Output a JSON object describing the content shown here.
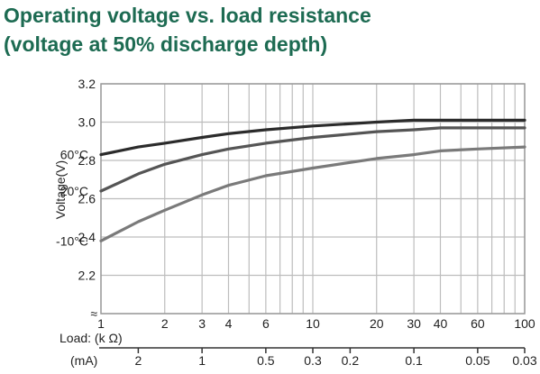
{
  "title_line1": "Operating voltage vs. load resistance",
  "title_line2": "(voltage at 50% discharge depth)",
  "title_color": "#1d6b52",
  "chart_data": {
    "type": "line",
    "ylabel": "Voltage(V)",
    "xlabel": "Load: (k Ω)",
    "x2label": "(mA)",
    "x_scale": "log",
    "xlim": [
      1,
      100
    ],
    "ylim": [
      2.0,
      3.2
    ],
    "y_ticks": [
      "3.2",
      "3.0",
      "2.8",
      "2.6",
      "2.4",
      "2.2"
    ],
    "y_break_marker": "≈",
    "x_ticks": [
      "1",
      "2",
      "3",
      "4",
      "6",
      "10",
      "20",
      "30",
      "40",
      "60",
      "100"
    ],
    "x2_ticks": [
      "2",
      "1",
      "0.5",
      "0.3",
      "0.2",
      "0.1",
      "0.05",
      "0.03"
    ],
    "series": [
      {
        "name": "60°C",
        "color": "#2b2b2b",
        "x": [
          1,
          1.5,
          2,
          3,
          4,
          6,
          10,
          20,
          30,
          40,
          60,
          100
        ],
        "y": [
          2.83,
          2.87,
          2.89,
          2.92,
          2.94,
          2.96,
          2.98,
          3.0,
          3.01,
          3.01,
          3.01,
          3.01
        ]
      },
      {
        "name": "20°C",
        "color": "#555555",
        "x": [
          1,
          1.5,
          2,
          3,
          4,
          6,
          10,
          20,
          30,
          40,
          60,
          100
        ],
        "y": [
          2.64,
          2.73,
          2.78,
          2.83,
          2.86,
          2.89,
          2.92,
          2.95,
          2.96,
          2.97,
          2.97,
          2.97
        ]
      },
      {
        "name": "-10°C",
        "color": "#7a7a7a",
        "x": [
          1,
          1.5,
          2,
          3,
          4,
          6,
          10,
          20,
          30,
          40,
          60,
          100
        ],
        "y": [
          2.38,
          2.48,
          2.54,
          2.62,
          2.67,
          2.72,
          2.76,
          2.81,
          2.83,
          2.85,
          2.86,
          2.87
        ]
      }
    ]
  }
}
